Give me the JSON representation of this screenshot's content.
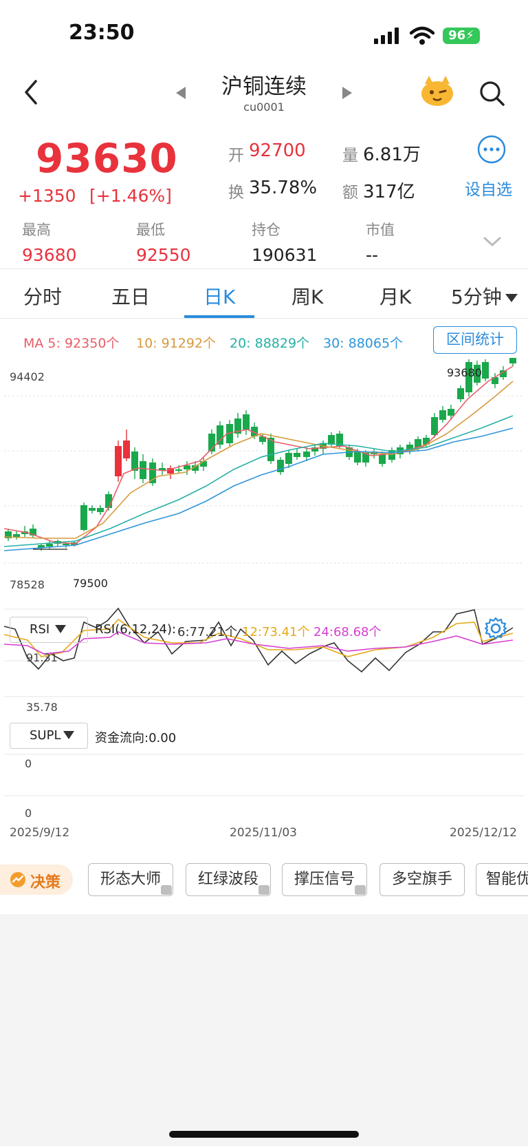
{
  "status_bar": {
    "time": "23:50",
    "battery": "96"
  },
  "nav": {
    "title": "沪铜连续",
    "subtitle": "cu0001"
  },
  "quote": {
    "price": "93630",
    "change": "+1350",
    "change_pct": "[+1.46%]",
    "open_label": "开",
    "open": "92700",
    "volume_label": "量",
    "volume": "6.81万",
    "turnover_label": "换",
    "turnover": "35.78%",
    "amount_label": "额",
    "amount": "317亿",
    "watchlist_label": "设自选"
  },
  "stats": [
    {
      "label": "最高",
      "value": "93680"
    },
    {
      "label": "最低",
      "value": "92550"
    },
    {
      "label": "持仓",
      "value": "190631"
    },
    {
      "label": "市值",
      "value": "--"
    }
  ],
  "tabs": [
    "分时",
    "五日",
    "日K",
    "周K",
    "月K",
    "5分钟"
  ],
  "active_tab": "日K",
  "ma_legend": {
    "ma5": "MA 5: 92350个",
    "ma10": "10: 91292个",
    "ma20": "20: 88829个",
    "ma30": "30: 88065个"
  },
  "range_stat_label": "区间统计",
  "colors": {
    "up": "#e8323c",
    "down": "#1aa84c",
    "ma5": "#e85d68",
    "ma10": "#d79a3c",
    "ma20": "#26b0a6",
    "ma30": "#2e95dc",
    "rsi6": "#333333",
    "rsi12": "#e6a817",
    "rsi24": "#d63fd0",
    "accent": "#2a8cdc"
  },
  "kline": {
    "top_label": "94402",
    "high_marker": "93680",
    "low_marker": "79500",
    "left_low_label": "78528"
  },
  "rsi": {
    "selector": "RSI",
    "params": "RSI(6,12,24):",
    "rsi6": "6:77.21个",
    "rsi12": "12:73.41个",
    "rsi24": "24:68.68个",
    "upper_label": "91.31",
    "lower_label": "35.78"
  },
  "supl": {
    "selector": "SUPL",
    "flow": "资金流向:0.00",
    "upper_label": "0",
    "lower_label": "0"
  },
  "dates": [
    "2025/9/12",
    "2025/11/03",
    "2025/12/12"
  ],
  "tools": {
    "decision": "决策",
    "chips": [
      "形态大师",
      "红绿波段",
      "撑压信号",
      "多空旗手",
      "智能优"
    ]
  }
}
